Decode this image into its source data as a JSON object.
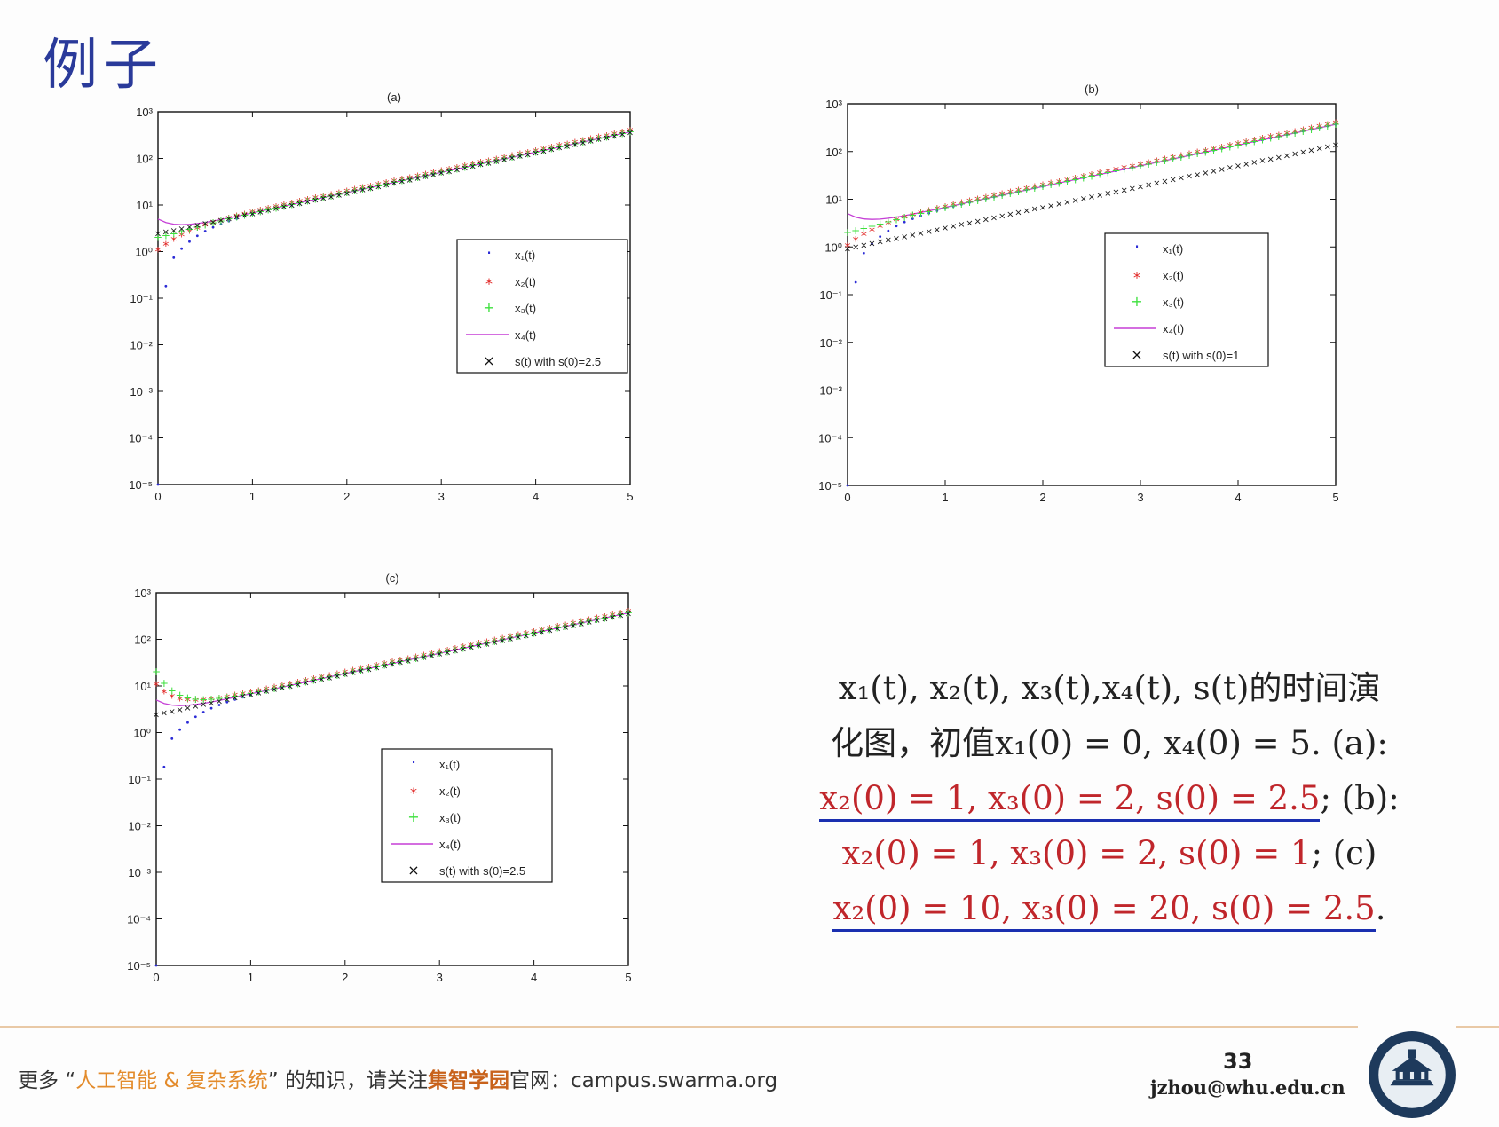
{
  "slide": {
    "title": "例子",
    "page_number": "33",
    "email": "jzhou@whu.edu.cn",
    "footer": {
      "prefix": "更多 “",
      "highlight": "人工智能 & 复杂系统",
      "middle": "” 的知识，请关注",
      "brand": "集智学园",
      "suffix": "官网：campus.swarma.org"
    }
  },
  "caption": {
    "line1": "x₁(t), x₂(t), x₃(t),x₄(t), s(t)的时间演",
    "line2": "化图，初值x₁(0) = 0, x₄(0) = 5. (a):",
    "line3_red": "x₂(0) = 1, x₃(0) = 2, s(0) = 2.5",
    "line3_tail": "; (b):",
    "line4_red": "x₂(0) = 1, x₃(0) = 2, s(0) = 1",
    "line4_tail": "; (c)",
    "line5_red": "x₂(0) = 10, x₃(0) = 20, s(0) = 2.5",
    "line5_tail": "."
  },
  "colors": {
    "x1": "#2b2bd6",
    "x2": "#e0201e",
    "x3": "#3ee03e",
    "x4": "#c53fd6",
    "s": "#111111"
  },
  "chart_data": [
    {
      "type": "line",
      "title": "(a)",
      "xlim": [
        0,
        5
      ],
      "ylim_log10": [
        -5,
        3
      ],
      "yscale": "log",
      "xticks": [
        "0",
        "1",
        "2",
        "3",
        "4",
        "5"
      ],
      "yticks": [
        "10⁻⁵",
        "10⁻⁴",
        "10⁻³",
        "10⁻²",
        "10⁻¹",
        "10⁰",
        "10¹",
        "10²",
        "10³"
      ],
      "legend_position": "center-right",
      "initial": {
        "x1": 0,
        "x2": 1,
        "x3": 2,
        "x4": 5,
        "s": 2.5
      },
      "series": [
        {
          "name": "x₁(t)",
          "marker": "dot"
        },
        {
          "name": "x₂(t)",
          "marker": "star"
        },
        {
          "name": "x₃(t)",
          "marker": "plus"
        },
        {
          "name": "x₄(t)",
          "marker": "line"
        },
        {
          "name": "s(t) with s(0)=2.5",
          "marker": "x"
        }
      ]
    },
    {
      "type": "line",
      "title": "(b)",
      "xlim": [
        0,
        5
      ],
      "ylim_log10": [
        -5,
        3
      ],
      "yscale": "log",
      "xticks": [
        "0",
        "1",
        "2",
        "3",
        "4",
        "5"
      ],
      "yticks": [
        "10⁻⁵",
        "10⁻⁴",
        "10⁻³",
        "10⁻²",
        "10⁻¹",
        "10⁰",
        "10¹",
        "10²",
        "10³"
      ],
      "legend_position": "center-right",
      "initial": {
        "x1": 0,
        "x2": 1,
        "x3": 2,
        "x4": 5,
        "s": 1
      },
      "series": [
        {
          "name": "x₁(t)",
          "marker": "dot"
        },
        {
          "name": "x₂(t)",
          "marker": "star"
        },
        {
          "name": "x₃(t)",
          "marker": "plus"
        },
        {
          "name": "x₄(t)",
          "marker": "line"
        },
        {
          "name": "s(t) with s(0)=1",
          "marker": "x"
        }
      ]
    },
    {
      "type": "line",
      "title": "(c)",
      "xlim": [
        0,
        5
      ],
      "ylim_log10": [
        -5,
        3
      ],
      "yscale": "log",
      "xticks": [
        "0",
        "1",
        "2",
        "3",
        "4",
        "5"
      ],
      "yticks": [
        "10⁻⁵",
        "10⁻⁴",
        "10⁻³",
        "10⁻²",
        "10⁻¹",
        "10⁰",
        "10¹",
        "10²",
        "10³"
      ],
      "legend_position": "center",
      "initial": {
        "x1": 0,
        "x2": 10,
        "x3": 20,
        "x4": 5,
        "s": 2.5
      },
      "series": [
        {
          "name": "x₁(t)",
          "marker": "dot"
        },
        {
          "name": "x₂(t)",
          "marker": "star"
        },
        {
          "name": "x₃(t)",
          "marker": "plus"
        },
        {
          "name": "x₄(t)",
          "marker": "line"
        },
        {
          "name": "s(t) with s(0)=2.5",
          "marker": "x"
        }
      ]
    }
  ]
}
